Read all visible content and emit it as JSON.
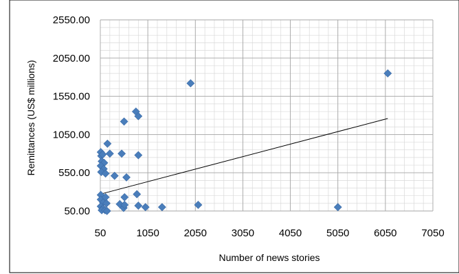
{
  "chart_data": {
    "type": "scatter",
    "title": "",
    "xlabel": "Number of news stories",
    "ylabel": "Remittances (US$ millions)",
    "xlim": [
      50,
      7050
    ],
    "ylim": [
      50,
      2550
    ],
    "x_ticks": [
      "50",
      "1050",
      "2050",
      "3050",
      "4050",
      "5050",
      "6050",
      "7050"
    ],
    "y_ticks": [
      "50.00",
      "550.00",
      "1050.00",
      "1550.00",
      "2050.00",
      "2550.00"
    ],
    "grid": true,
    "legend": "none",
    "marker_color": "#4a7ebb",
    "trendline_color": "#000000",
    "trendline": {
      "x": [
        50,
        6100
      ],
      "y": [
        270,
        1260
      ]
    },
    "series": [
      {
        "values": [
          {
            "x": 60,
            "y": 820
          },
          {
            "x": 70,
            "y": 770
          },
          {
            "x": 100,
            "y": 790
          },
          {
            "x": 80,
            "y": 700
          },
          {
            "x": 130,
            "y": 680
          },
          {
            "x": 60,
            "y": 640
          },
          {
            "x": 120,
            "y": 600
          },
          {
            "x": 70,
            "y": 560
          },
          {
            "x": 160,
            "y": 540
          },
          {
            "x": 250,
            "y": 800
          },
          {
            "x": 200,
            "y": 930
          },
          {
            "x": 350,
            "y": 510
          },
          {
            "x": 500,
            "y": 800
          },
          {
            "x": 600,
            "y": 490
          },
          {
            "x": 550,
            "y": 1220
          },
          {
            "x": 800,
            "y": 1350
          },
          {
            "x": 850,
            "y": 1290
          },
          {
            "x": 850,
            "y": 780
          },
          {
            "x": 60,
            "y": 260
          },
          {
            "x": 60,
            "y": 200
          },
          {
            "x": 110,
            "y": 160
          },
          {
            "x": 160,
            "y": 230
          },
          {
            "x": 60,
            "y": 110
          },
          {
            "x": 100,
            "y": 80
          },
          {
            "x": 80,
            "y": 60
          },
          {
            "x": 150,
            "y": 60
          },
          {
            "x": 190,
            "y": 50
          },
          {
            "x": 180,
            "y": 150
          },
          {
            "x": 460,
            "y": 140
          },
          {
            "x": 540,
            "y": 90
          },
          {
            "x": 560,
            "y": 130
          },
          {
            "x": 560,
            "y": 230
          },
          {
            "x": 820,
            "y": 270
          },
          {
            "x": 850,
            "y": 120
          },
          {
            "x": 1000,
            "y": 100
          },
          {
            "x": 1350,
            "y": 100
          },
          {
            "x": 1950,
            "y": 1720
          },
          {
            "x": 2110,
            "y": 130
          },
          {
            "x": 5050,
            "y": 100
          },
          {
            "x": 6100,
            "y": 1850
          }
        ]
      }
    ]
  }
}
